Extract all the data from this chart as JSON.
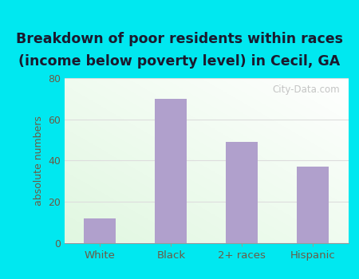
{
  "categories": [
    "White",
    "Black",
    "2+ races",
    "Hispanic"
  ],
  "values": [
    12,
    70,
    49,
    37
  ],
  "bar_color": "#b0a0cc",
  "title_line1": "Breakdown of poor residents within races",
  "title_line2": "(income below poverty level) in Cecil, GA",
  "ylabel": "absolute numbers",
  "ylim": [
    0,
    80
  ],
  "yticks": [
    0,
    20,
    40,
    60,
    80
  ],
  "background_color": "#00e8f0",
  "title_fontsize": 12.5,
  "title_color": "#1a1a2e",
  "axis_label_color": "#6b5b45",
  "tick_color": "#6b5b45",
  "watermark": "City-Data.com",
  "grid_color": "#dddddd",
  "plot_bg": "#f0faf0"
}
